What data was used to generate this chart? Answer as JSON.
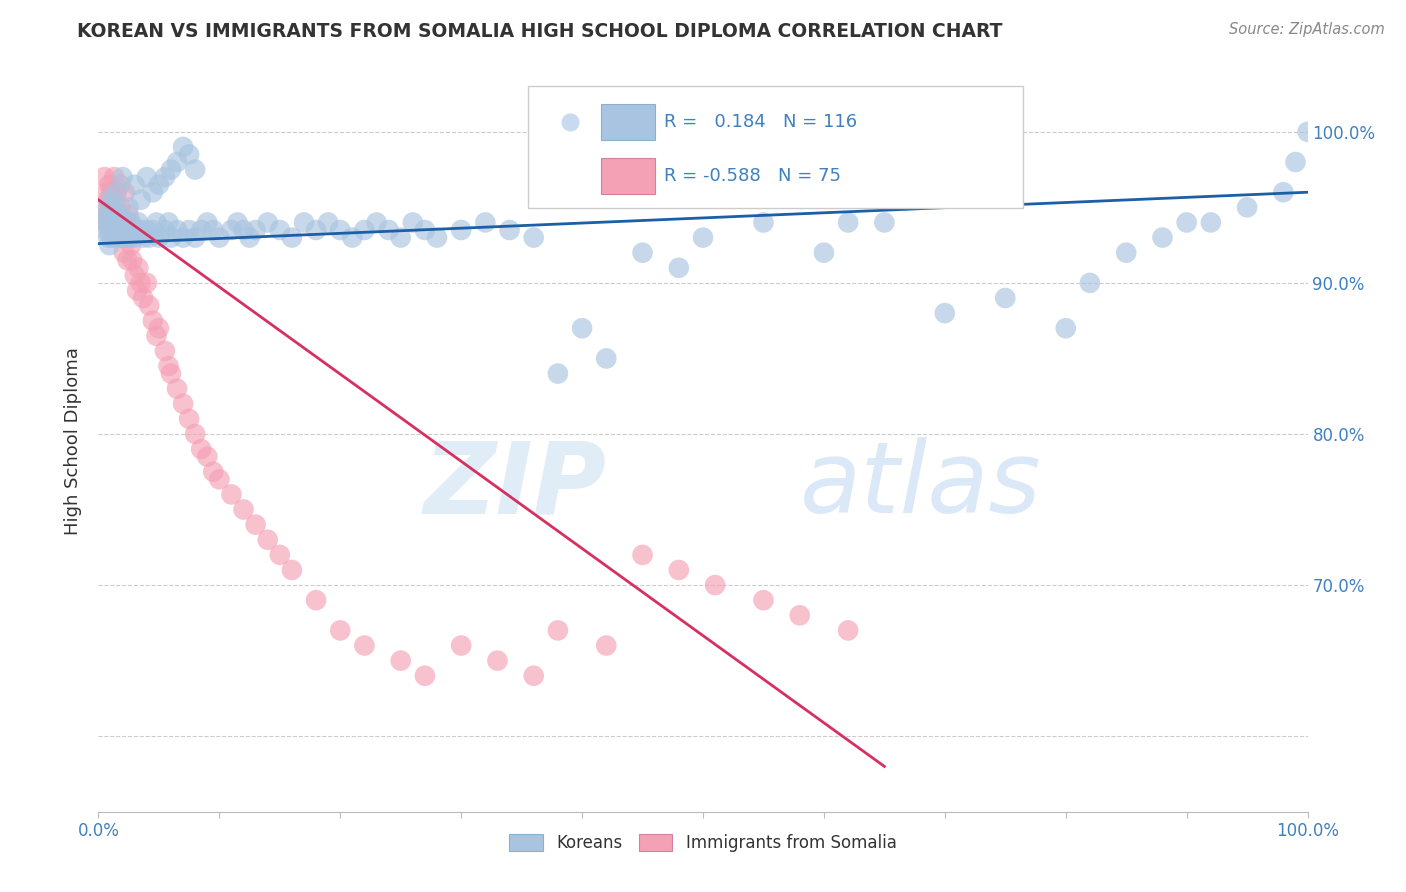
{
  "title": "KOREAN VS IMMIGRANTS FROM SOMALIA HIGH SCHOOL DIPLOMA CORRELATION CHART",
  "source": "Source: ZipAtlas.com",
  "ylabel": "High School Diploma",
  "xlim": [
    0,
    1.0
  ],
  "ylim": [
    0.55,
    1.04
  ],
  "ytick_positions": [
    0.6,
    0.7,
    0.8,
    0.9,
    1.0
  ],
  "ytick_labels": [
    "",
    "70.0%",
    "80.0%",
    "90.0%",
    "100.0%"
  ],
  "xtick_positions": [
    0.0,
    0.1,
    0.2,
    0.3,
    0.4,
    0.5,
    0.6,
    0.7,
    0.8,
    0.9,
    1.0
  ],
  "xtick_labels_show": [
    "0.0%",
    "",
    "",
    "",
    "",
    "",
    "",
    "",
    "",
    "",
    "100.0%"
  ],
  "watermark": "ZIPAtlas",
  "korean_color": "#a8c4e0",
  "somalia_color": "#f4a0b5",
  "korean_line_color": "#1a5fa8",
  "somalia_line_color": "#d63060",
  "title_color": "#333333",
  "axis_label_color": "#333333",
  "tick_color": "#4080c0",
  "grid_color": "#cccccc",
  "legend_circle_color": "#c8daf0",
  "legend_blue_box": "#a8c4e0",
  "legend_pink_box": "#f4a0b5",
  "korean_scatter_x": [
    0.005,
    0.006,
    0.007,
    0.008,
    0.008,
    0.009,
    0.01,
    0.01,
    0.011,
    0.011,
    0.012,
    0.012,
    0.013,
    0.013,
    0.014,
    0.015,
    0.015,
    0.016,
    0.016,
    0.017,
    0.017,
    0.018,
    0.018,
    0.019,
    0.02,
    0.02,
    0.021,
    0.022,
    0.022,
    0.023,
    0.024,
    0.025,
    0.026,
    0.027,
    0.028,
    0.03,
    0.031,
    0.033,
    0.035,
    0.037,
    0.04,
    0.042,
    0.045,
    0.048,
    0.05,
    0.055,
    0.058,
    0.06,
    0.065,
    0.07,
    0.075,
    0.08,
    0.085,
    0.09,
    0.095,
    0.1,
    0.11,
    0.115,
    0.12,
    0.125,
    0.13,
    0.14,
    0.15,
    0.16,
    0.17,
    0.18,
    0.19,
    0.2,
    0.21,
    0.22,
    0.23,
    0.24,
    0.25,
    0.26,
    0.27,
    0.28,
    0.3,
    0.32,
    0.34,
    0.36,
    0.38,
    0.4,
    0.42,
    0.45,
    0.48,
    0.5,
    0.55,
    0.6,
    0.62,
    0.65,
    0.7,
    0.75,
    0.8,
    0.82,
    0.85,
    0.88,
    0.9,
    0.92,
    0.95,
    0.98,
    0.99,
    1.0,
    0.015,
    0.02,
    0.025,
    0.03,
    0.035,
    0.04,
    0.045,
    0.05,
    0.055,
    0.06,
    0.065,
    0.07,
    0.075,
    0.08
  ],
  "korean_scatter_y": [
    0.94,
    0.935,
    0.945,
    0.93,
    0.95,
    0.925,
    0.94,
    0.955,
    0.935,
    0.945,
    0.93,
    0.94,
    0.935,
    0.95,
    0.94,
    0.935,
    0.945,
    0.93,
    0.94,
    0.935,
    0.945,
    0.93,
    0.94,
    0.935,
    0.94,
    0.93,
    0.935,
    0.94,
    0.93,
    0.935,
    0.94,
    0.935,
    0.93,
    0.94,
    0.935,
    0.93,
    0.935,
    0.94,
    0.935,
    0.93,
    0.935,
    0.93,
    0.935,
    0.94,
    0.93,
    0.935,
    0.94,
    0.93,
    0.935,
    0.93,
    0.935,
    0.93,
    0.935,
    0.94,
    0.935,
    0.93,
    0.935,
    0.94,
    0.935,
    0.93,
    0.935,
    0.94,
    0.935,
    0.93,
    0.94,
    0.935,
    0.94,
    0.935,
    0.93,
    0.935,
    0.94,
    0.935,
    0.93,
    0.94,
    0.935,
    0.93,
    0.935,
    0.94,
    0.935,
    0.93,
    0.84,
    0.87,
    0.85,
    0.92,
    0.91,
    0.93,
    0.94,
    0.92,
    0.94,
    0.94,
    0.88,
    0.89,
    0.87,
    0.9,
    0.92,
    0.93,
    0.94,
    0.94,
    0.95,
    0.96,
    0.98,
    1.0,
    0.96,
    0.97,
    0.95,
    0.965,
    0.955,
    0.97,
    0.96,
    0.965,
    0.97,
    0.975,
    0.98,
    0.99,
    0.985,
    0.975
  ],
  "somalia_scatter_x": [
    0.005,
    0.006,
    0.007,
    0.007,
    0.008,
    0.008,
    0.009,
    0.009,
    0.01,
    0.01,
    0.011,
    0.011,
    0.012,
    0.013,
    0.013,
    0.014,
    0.015,
    0.015,
    0.016,
    0.017,
    0.018,
    0.019,
    0.02,
    0.02,
    0.021,
    0.022,
    0.023,
    0.024,
    0.025,
    0.026,
    0.027,
    0.028,
    0.03,
    0.032,
    0.033,
    0.035,
    0.037,
    0.04,
    0.042,
    0.045,
    0.048,
    0.05,
    0.055,
    0.058,
    0.06,
    0.065,
    0.07,
    0.075,
    0.08,
    0.085,
    0.09,
    0.095,
    0.1,
    0.11,
    0.12,
    0.13,
    0.14,
    0.15,
    0.16,
    0.18,
    0.2,
    0.22,
    0.25,
    0.27,
    0.3,
    0.33,
    0.36,
    0.38,
    0.42,
    0.45,
    0.48,
    0.51,
    0.55,
    0.58,
    0.62
  ],
  "somalia_scatter_y": [
    0.97,
    0.95,
    0.94,
    0.96,
    0.955,
    0.945,
    0.935,
    0.965,
    0.95,
    0.94,
    0.93,
    0.96,
    0.945,
    0.935,
    0.97,
    0.95,
    0.94,
    0.96,
    0.945,
    0.935,
    0.965,
    0.95,
    0.94,
    0.93,
    0.92,
    0.96,
    0.935,
    0.915,
    0.945,
    0.93,
    0.925,
    0.915,
    0.905,
    0.895,
    0.91,
    0.9,
    0.89,
    0.9,
    0.885,
    0.875,
    0.865,
    0.87,
    0.855,
    0.845,
    0.84,
    0.83,
    0.82,
    0.81,
    0.8,
    0.79,
    0.785,
    0.775,
    0.77,
    0.76,
    0.75,
    0.74,
    0.73,
    0.72,
    0.71,
    0.69,
    0.67,
    0.66,
    0.65,
    0.64,
    0.66,
    0.65,
    0.64,
    0.67,
    0.66,
    0.72,
    0.71,
    0.7,
    0.69,
    0.68,
    0.67
  ],
  "korean_trend_x": [
    0.0,
    1.0
  ],
  "korean_trend_y": [
    0.926,
    0.96
  ],
  "somalia_trend_x": [
    0.0,
    0.65
  ],
  "somalia_trend_y": [
    0.955,
    0.58
  ]
}
